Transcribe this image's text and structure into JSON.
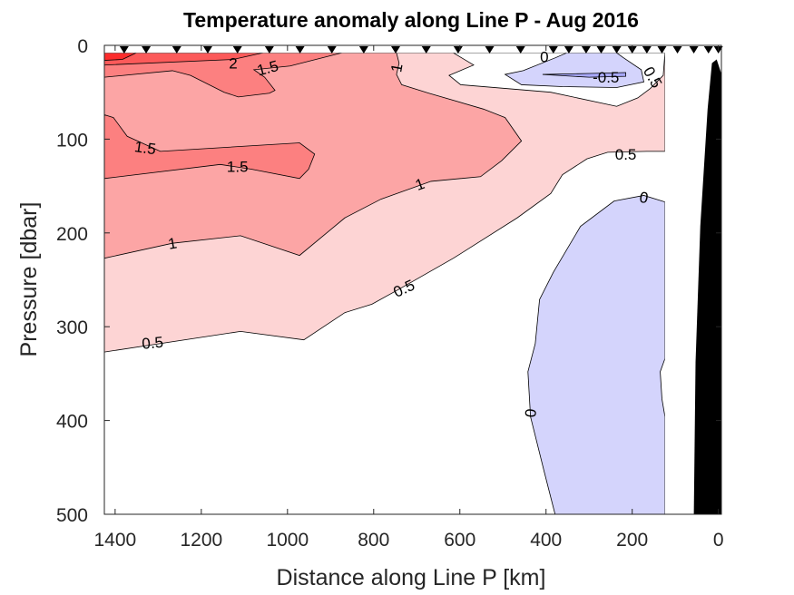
{
  "chart_data": {
    "type": "contour",
    "title": "Temperature anomaly along Line P - Aug 2016",
    "xlabel": "Distance along Line P [km]",
    "ylabel": "Pressure [dbar]",
    "xlim": [
      1425,
      -7
    ],
    "ylim": [
      0,
      500
    ],
    "x_reversed": true,
    "y_reversed": true,
    "xticks": [
      1400,
      1200,
      1000,
      800,
      600,
      400,
      200,
      0
    ],
    "yticks": [
      0,
      100,
      200,
      300,
      400,
      500
    ],
    "contour_levels": [
      -0.5,
      0,
      0.5,
      1,
      1.5,
      2,
      2.5
    ],
    "colors": {
      "neg_0_5": "#a8a8fc",
      "neg": "#d4d4fc",
      "zero_to_0_5": "#ffffff",
      "l0_5": "#fdd4d4",
      "l1": "#fca5a5",
      "l1_5": "#fc8080",
      "l2": "#fc5a5a",
      "l2_5": "#fc2c2c",
      "bathymetry": "#000000"
    },
    "regions": [
      {
        "name": "anomaly-0.5-region",
        "level": 0.5,
        "color_key": "l0_5",
        "points": [
          [
            1425,
            8
          ],
          [
            124,
            8
          ],
          [
            124,
            113
          ],
          [
            166,
            113
          ],
          [
            257,
            114
          ],
          [
            305,
            121
          ],
          [
            362,
            138
          ],
          [
            389,
            158
          ],
          [
            467,
            184
          ],
          [
            615,
            227
          ],
          [
            741,
            260
          ],
          [
            804,
            276
          ],
          [
            867,
            285
          ],
          [
            962,
            314
          ],
          [
            1109,
            305
          ],
          [
            1425,
            327
          ]
        ]
      },
      {
        "name": "anomaly-0-hole-top",
        "level": 0,
        "color_key": "zero_to_0_5",
        "points": [
          [
            615,
            8
          ],
          [
            568,
            21
          ],
          [
            625,
            32
          ],
          [
            598,
            42
          ],
          [
            389,
            50
          ],
          [
            236,
            65
          ],
          [
            187,
            56
          ],
          [
            158,
            46
          ],
          [
            128,
            32
          ],
          [
            124,
            8
          ]
        ]
      },
      {
        "name": "anomaly-negative-top",
        "level": -0.01,
        "color_key": "neg",
        "points": [
          [
            495,
            31
          ],
          [
            453,
            27
          ],
          [
            377,
            13
          ],
          [
            352,
            8
          ],
          [
            236,
            8
          ],
          [
            221,
            13
          ],
          [
            179,
            26
          ],
          [
            173,
            39
          ],
          [
            236,
            45
          ],
          [
            362,
            44
          ],
          [
            457,
            42
          ]
        ]
      },
      {
        "name": "anomaly-minus-0.5-top",
        "level": -0.5,
        "color_key": "neg_0_5",
        "points": [
          [
            408,
            31
          ],
          [
            300,
            34
          ],
          [
            215,
            33
          ],
          [
            215,
            29
          ],
          [
            300,
            30
          ]
        ]
      },
      {
        "name": "anomaly-1-region",
        "level": 1,
        "color_key": "l1",
        "points": [
          [
            1425,
            8
          ],
          [
            747,
            8
          ],
          [
            741,
            19
          ],
          [
            747,
            31
          ],
          [
            735,
            42
          ],
          [
            672,
            51
          ],
          [
            545,
            68
          ],
          [
            495,
            77
          ],
          [
            457,
            102
          ],
          [
            503,
            123
          ],
          [
            552,
            140
          ],
          [
            667,
            145
          ],
          [
            783,
            164
          ],
          [
            867,
            184
          ],
          [
            972,
            224
          ],
          [
            1109,
            203
          ],
          [
            1267,
            211
          ],
          [
            1425,
            227
          ]
        ]
      },
      {
        "name": "anomaly-1.5-top-region",
        "level": 1.5,
        "color_key": "l1_5",
        "points": [
          [
            1425,
            8
          ],
          [
            874,
            8
          ],
          [
            994,
            22
          ],
          [
            1078,
            26
          ],
          [
            1053,
            34
          ],
          [
            1029,
            48
          ],
          [
            1042,
            51
          ],
          [
            1114,
            55
          ],
          [
            1147,
            50
          ],
          [
            1225,
            32
          ],
          [
            1267,
            27
          ],
          [
            1425,
            34
          ]
        ]
      },
      {
        "name": "anomaly-1.5-mid-region",
        "level": 1.5,
        "color_key": "l1_5",
        "points": [
          [
            1425,
            74
          ],
          [
            1404,
            77
          ],
          [
            1372,
            97
          ],
          [
            1295,
            113
          ],
          [
            972,
            104
          ],
          [
            937,
            116
          ],
          [
            951,
            132
          ],
          [
            972,
            142
          ],
          [
            1084,
            132
          ],
          [
            1156,
            127
          ],
          [
            1425,
            142
          ]
        ]
      },
      {
        "name": "anomaly-2-region",
        "level": 2,
        "color_key": "l2",
        "points": [
          [
            1425,
            8
          ],
          [
            1057,
            8
          ],
          [
            1126,
            15
          ],
          [
            1425,
            21
          ]
        ]
      },
      {
        "name": "anomaly-2.5-region",
        "level": 2.5,
        "color_key": "l2_5",
        "points": [
          [
            1425,
            8
          ],
          [
            1351,
            8
          ],
          [
            1383,
            15
          ],
          [
            1425,
            16
          ]
        ]
      },
      {
        "name": "anomaly-negative-deep",
        "level": -0.01,
        "color_key": "neg",
        "points": [
          [
            242,
            166
          ],
          [
            173,
            160
          ],
          [
            124,
            167
          ],
          [
            124,
            334
          ],
          [
            135,
            348
          ],
          [
            131,
            377
          ],
          [
            124,
            396
          ],
          [
            124,
            500
          ],
          [
            379,
            500
          ],
          [
            404,
            455
          ],
          [
            436,
            396
          ],
          [
            442,
            348
          ],
          [
            425,
            318
          ],
          [
            415,
            271
          ],
          [
            383,
            242
          ],
          [
            320,
            193
          ]
        ]
      }
    ],
    "bathymetry": [
      [
        57,
        500
      ],
      [
        53,
        338
      ],
      [
        42,
        193
      ],
      [
        25,
        68
      ],
      [
        15,
        19
      ],
      [
        4,
        15
      ],
      [
        -6,
        29
      ],
      [
        -6,
        500
      ]
    ],
    "contour_labels": [
      {
        "text": "2",
        "x": 1126,
        "y": 19,
        "rot": 0
      },
      {
        "text": "1.5",
        "x": 1046,
        "y": 24,
        "rot": -15
      },
      {
        "text": "1.5",
        "x": 1330,
        "y": 109,
        "rot": 8
      },
      {
        "text": "1.5",
        "x": 1116,
        "y": 129,
        "rot": 0
      },
      {
        "text": "1",
        "x": 747,
        "y": 24,
        "rot": -80
      },
      {
        "text": "1",
        "x": 693,
        "y": 148,
        "rot": -20
      },
      {
        "text": "1",
        "x": 1267,
        "y": 211,
        "rot": -10
      },
      {
        "text": "0.5",
        "x": 215,
        "y": 116,
        "rot": 0
      },
      {
        "text": "0.5",
        "x": 730,
        "y": 259,
        "rot": -25
      },
      {
        "text": "0.5",
        "x": 1313,
        "y": 317,
        "rot": -5
      },
      {
        "text": "0.5",
        "x": 152,
        "y": 34,
        "rot": 60
      },
      {
        "text": "0",
        "x": 404,
        "y": 12,
        "rot": 0
      },
      {
        "text": "-0.5",
        "x": 261,
        "y": 34,
        "rot": 0
      },
      {
        "text": "0",
        "x": 173,
        "y": 162,
        "rot": 10
      },
      {
        "text": "0",
        "x": 436,
        "y": 392,
        "rot": -85
      }
    ],
    "stations_km": [
      1379,
      1328,
      1257,
      1185,
      1116,
      1042,
      971,
      897,
      823,
      749,
      678,
      604,
      531,
      459,
      383,
      347,
      307,
      272,
      236,
      200,
      166,
      131,
      95,
      57,
      23,
      0
    ]
  }
}
